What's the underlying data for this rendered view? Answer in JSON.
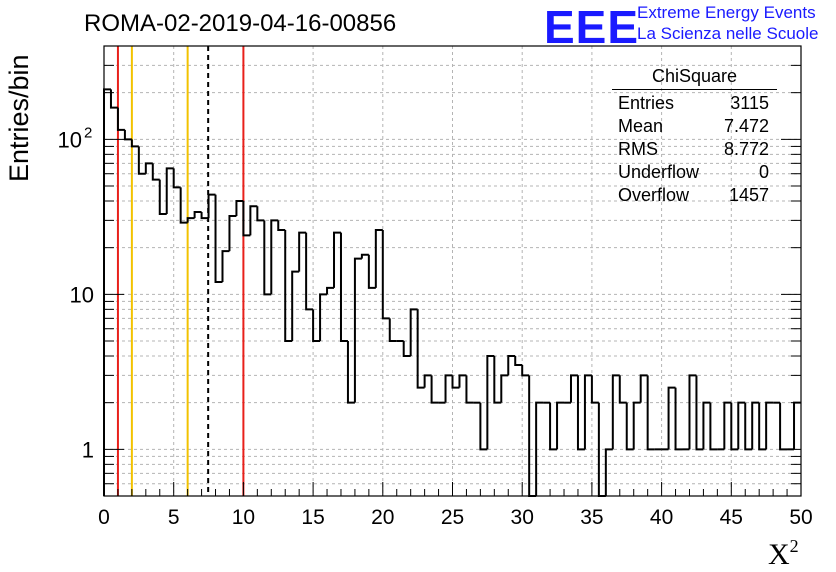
{
  "header": {
    "run_title": "ROMA-02-2019-04-16-00856"
  },
  "logo": {
    "mark": "EEE",
    "line1": "Extreme Energy Events",
    "line2": "La Scienza nelle Scuole",
    "color": "#1a1aff"
  },
  "stats_box": {
    "title": "ChiSquare",
    "rows": [
      {
        "label": "Entries",
        "value": "3115"
      },
      {
        "label": "Mean",
        "value": "7.472"
      },
      {
        "label": "RMS",
        "value": "8.772"
      },
      {
        "label": "Underflow",
        "value": "0"
      },
      {
        "label": "Overflow",
        "value": "1457"
      }
    ]
  },
  "chart_data": {
    "type": "bar",
    "style": "step-histogram",
    "title": "ROMA-02-2019-04-16-00856",
    "xlabel": "X",
    "xlabel_superscript": "2",
    "ylabel": "Entries/bin",
    "xlim": [
      0,
      50
    ],
    "ylim": [
      0.5,
      400
    ],
    "y_scale": "log",
    "grid": true,
    "bin_width": 0.5,
    "x_ticks": [
      "0",
      "5",
      "10",
      "15",
      "20",
      "25",
      "30",
      "35",
      "40",
      "45",
      "50"
    ],
    "y_ticks": [
      {
        "value": 1,
        "label": "1"
      },
      {
        "value": 10,
        "label": "10"
      },
      {
        "value": 100,
        "label": "10",
        "exponent": "2"
      }
    ],
    "values": [
      210,
      160,
      115,
      100,
      90,
      60,
      70,
      55,
      33,
      65,
      49,
      29,
      31,
      34,
      31,
      44,
      12,
      19,
      32,
      40,
      24,
      37,
      30,
      10,
      30,
      26,
      5,
      14,
      25,
      8,
      5,
      10,
      11,
      25,
      5,
      2,
      17,
      18,
      11,
      26,
      7,
      5,
      5,
      4,
      8,
      2.5,
      3,
      2,
      2,
      3,
      2.5,
      3,
      2,
      2,
      1,
      4,
      2,
      3,
      4,
      3.5,
      3,
      0.4,
      2,
      2,
      1,
      2,
      2,
      3,
      1,
      3,
      2,
      0.4,
      1,
      3,
      2,
      1,
      2,
      3,
      1,
      1,
      1,
      2.5,
      1,
      1,
      3,
      1,
      2,
      1,
      1,
      2,
      1,
      2,
      1,
      2,
      1,
      2,
      2,
      1,
      1,
      2
    ],
    "vertical_lines": [
      {
        "x": 1.0,
        "color": "#e8201a",
        "style": "solid"
      },
      {
        "x": 2.0,
        "color": "#f2c200",
        "style": "solid"
      },
      {
        "x": 6.0,
        "color": "#f2c200",
        "style": "solid"
      },
      {
        "x": 7.472,
        "color": "#000000",
        "style": "dashed"
      },
      {
        "x": 10.0,
        "color": "#e8201a",
        "style": "solid"
      }
    ],
    "line_color": "#000000"
  }
}
